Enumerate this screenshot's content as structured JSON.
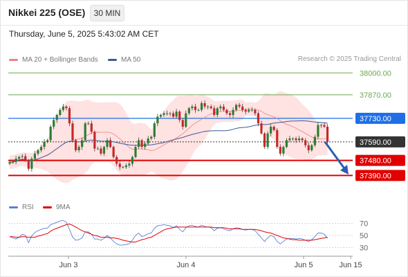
{
  "header": {
    "title": "Nikkei 225 (OSE)",
    "timeframe": "30 MIN"
  },
  "datetime": "Thursday, June 5, 2025 5:43:02 AM CET",
  "legend": {
    "main": [
      {
        "name": "MA 20 + Bollinger Bands",
        "color": "#f08080"
      },
      {
        "name": "MA 50",
        "color": "#3a5a9c"
      }
    ],
    "rsi": [
      {
        "name": "RSI",
        "color": "#5b7fd6"
      },
      {
        "name": "9MA",
        "color": "#e00000"
      }
    ]
  },
  "credit": "Research © 2025 Trading Central",
  "chart_data": {
    "type": "candlestick",
    "ylim": [
      37330,
      38030
    ],
    "x_labels": [
      "Jun 3",
      "Jun 4",
      "Jun 5",
      "Jun 15"
    ],
    "levels": [
      {
        "value": 38000,
        "label": "38000.00",
        "color": "#6aa84f",
        "style": "resistance"
      },
      {
        "value": 37870,
        "label": "37870.00",
        "color": "#6aa84f",
        "style": "resistance"
      },
      {
        "value": 37730,
        "label": "37730.00",
        "color": "#1e6fe6",
        "style": "pivot"
      },
      {
        "value": 37590,
        "label": "37590.00",
        "color": "#333333",
        "style": "current"
      },
      {
        "value": 37480,
        "label": "37480.00",
        "color": "#e00000",
        "style": "support"
      },
      {
        "value": 37390,
        "label": "37390.00",
        "color": "#e00000",
        "style": "support"
      }
    ],
    "close": [
      37470,
      37470,
      37490,
      37500,
      37505,
      37480,
      37430,
      37490,
      37520,
      37540,
      37560,
      37590,
      37600,
      37680,
      37720,
      37750,
      37780,
      37800,
      37790,
      37700,
      37600,
      37540,
      37560,
      37600,
      37700,
      37700,
      37650,
      37550,
      37550,
      37520,
      37560,
      37600,
      37560,
      37500,
      37460,
      37440,
      37440,
      37450,
      37460,
      37500,
      37560,
      37600,
      37560,
      37580,
      37610,
      37620,
      37700,
      37740,
      37750,
      37760,
      37760,
      37760,
      37740,
      37770,
      37720,
      37680,
      37760,
      37790,
      37800,
      37780,
      37780,
      37820,
      37800,
      37800,
      37790,
      37750,
      37790,
      37800,
      37780,
      37760,
      37750,
      37780,
      37810,
      37800,
      37780,
      37770,
      37780,
      37780,
      37760,
      37700,
      37640,
      37560,
      37640,
      37680,
      37660,
      37560,
      37520,
      37560,
      37600,
      37610,
      37610,
      37600,
      37610,
      37600,
      37570,
      37540,
      37570,
      37620,
      37690,
      37690,
      37680,
      37590
    ],
    "rsi": {
      "ylim": [
        20,
        80
      ],
      "ticks": [
        70,
        50,
        30
      ],
      "values": [
        48,
        46,
        44,
        47,
        52,
        50,
        38,
        49,
        55,
        58,
        60,
        62,
        62,
        68,
        70,
        72,
        74,
        75,
        72,
        60,
        47,
        42,
        43,
        46,
        56,
        56,
        52,
        44,
        44,
        42,
        45,
        50,
        46,
        40,
        36,
        34,
        34,
        35,
        36,
        42,
        50,
        54,
        48,
        50,
        53,
        54,
        62,
        66,
        67,
        68,
        67,
        66,
        63,
        66,
        60,
        56,
        63,
        66,
        67,
        65,
        64,
        67,
        65,
        64,
        63,
        58,
        62,
        63,
        61,
        59,
        58,
        61,
        63,
        62,
        60,
        59,
        60,
        60,
        58,
        52,
        46,
        40,
        46,
        50,
        48,
        40,
        36,
        40,
        44,
        45,
        45,
        44,
        45,
        44,
        42,
        40,
        43,
        48,
        54,
        54,
        52,
        45
      ],
      "ma_values": [
        48,
        48,
        47,
        47,
        48,
        48,
        47,
        47,
        47,
        49,
        50,
        52,
        53,
        57,
        60,
        62,
        64,
        66,
        68,
        69,
        67,
        64,
        61,
        58,
        56,
        54,
        52,
        50,
        49,
        47,
        47,
        47,
        46,
        46,
        45,
        44,
        42,
        41,
        40,
        39,
        39,
        41,
        43,
        44,
        46,
        47,
        50,
        53,
        56,
        59,
        61,
        62,
        63,
        64,
        64,
        64,
        64,
        64,
        64,
        64,
        64,
        64,
        64,
        64,
        64,
        63,
        63,
        63,
        63,
        62,
        61,
        61,
        61,
        61,
        60,
        60,
        60,
        60,
        60,
        59,
        58,
        56,
        55,
        54,
        52,
        50,
        48,
        46,
        45,
        44,
        43,
        43,
        42,
        42,
        42,
        42,
        42,
        43,
        44,
        45,
        46,
        47
      ]
    }
  }
}
